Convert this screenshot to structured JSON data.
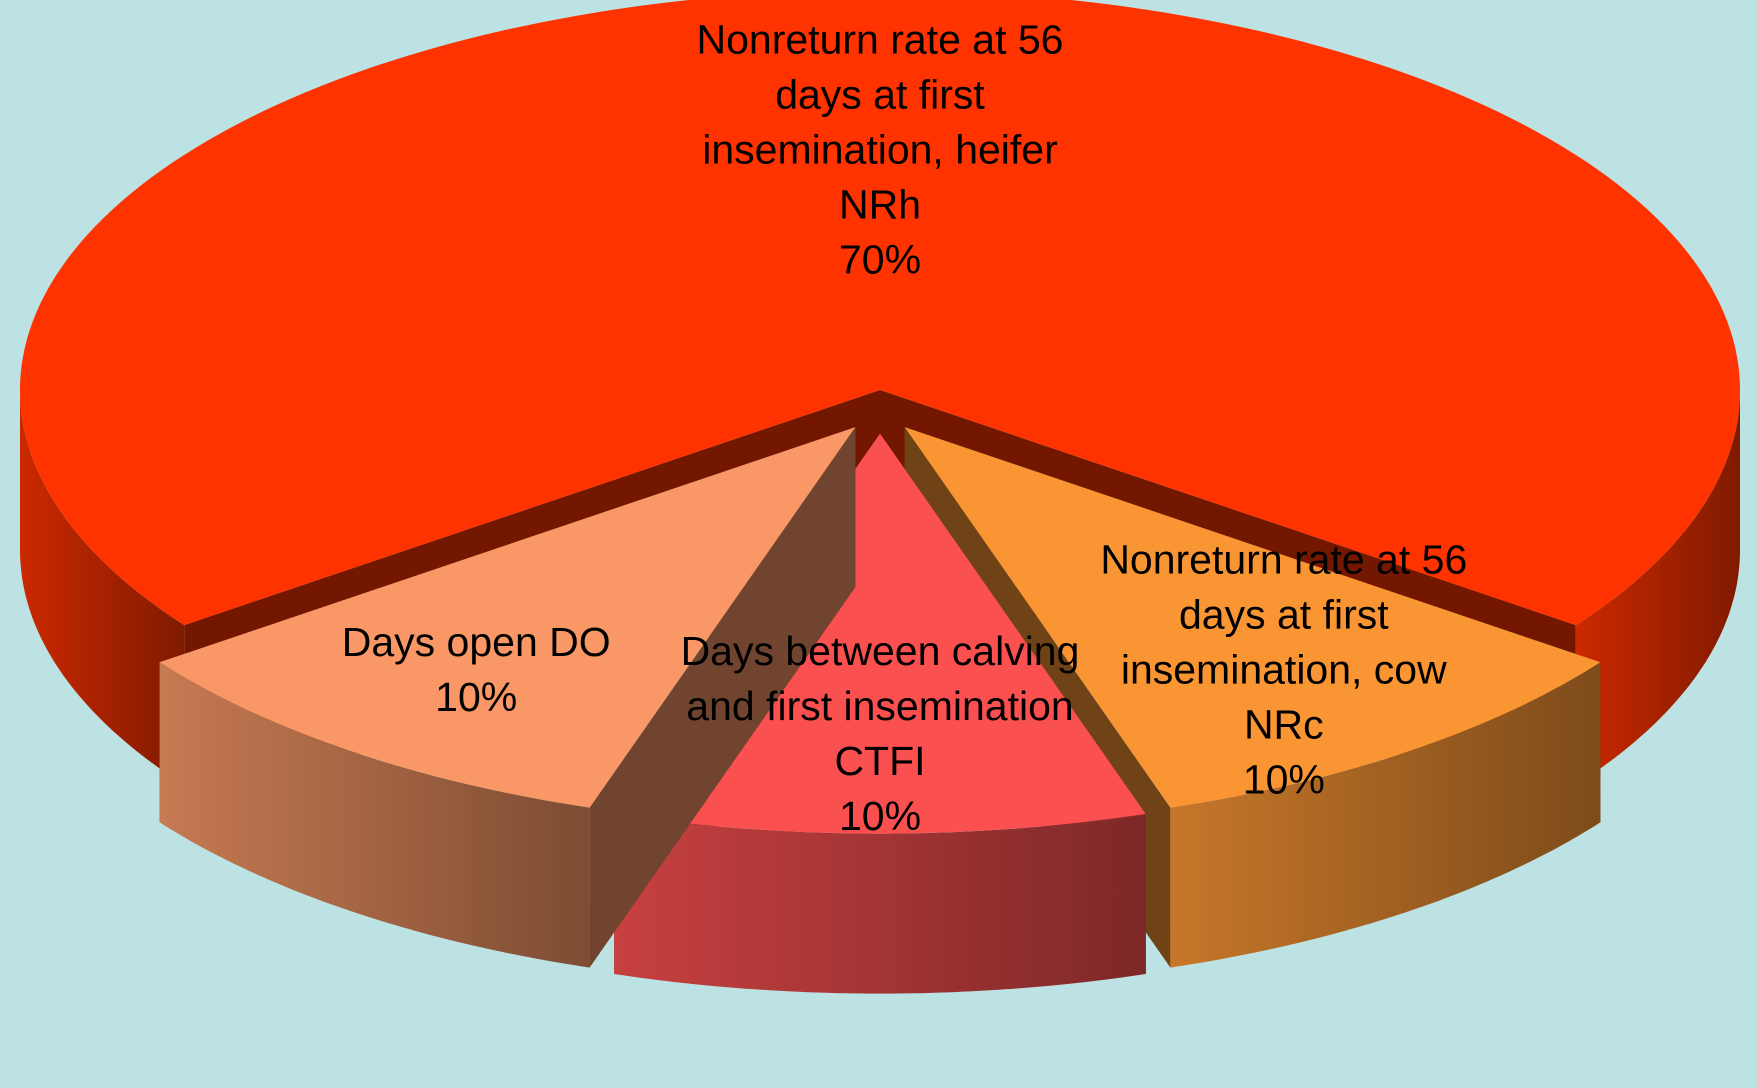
{
  "chart_data": {
    "type": "pie",
    "categories": [
      "Nonreturn rate at 56 days at first insemination, heifer NRh",
      "Nonreturn rate at 56 days at first insemination, cow NRc",
      "Days between calving and first insemination CTFI",
      "Days open DO"
    ],
    "values": [
      70,
      10,
      10,
      10
    ],
    "value_labels": [
      "70%",
      "10%",
      "10%",
      "10%"
    ],
    "colors": [
      "#ff3300",
      "#f99533",
      "#fa5050",
      "#f99866"
    ]
  }
}
